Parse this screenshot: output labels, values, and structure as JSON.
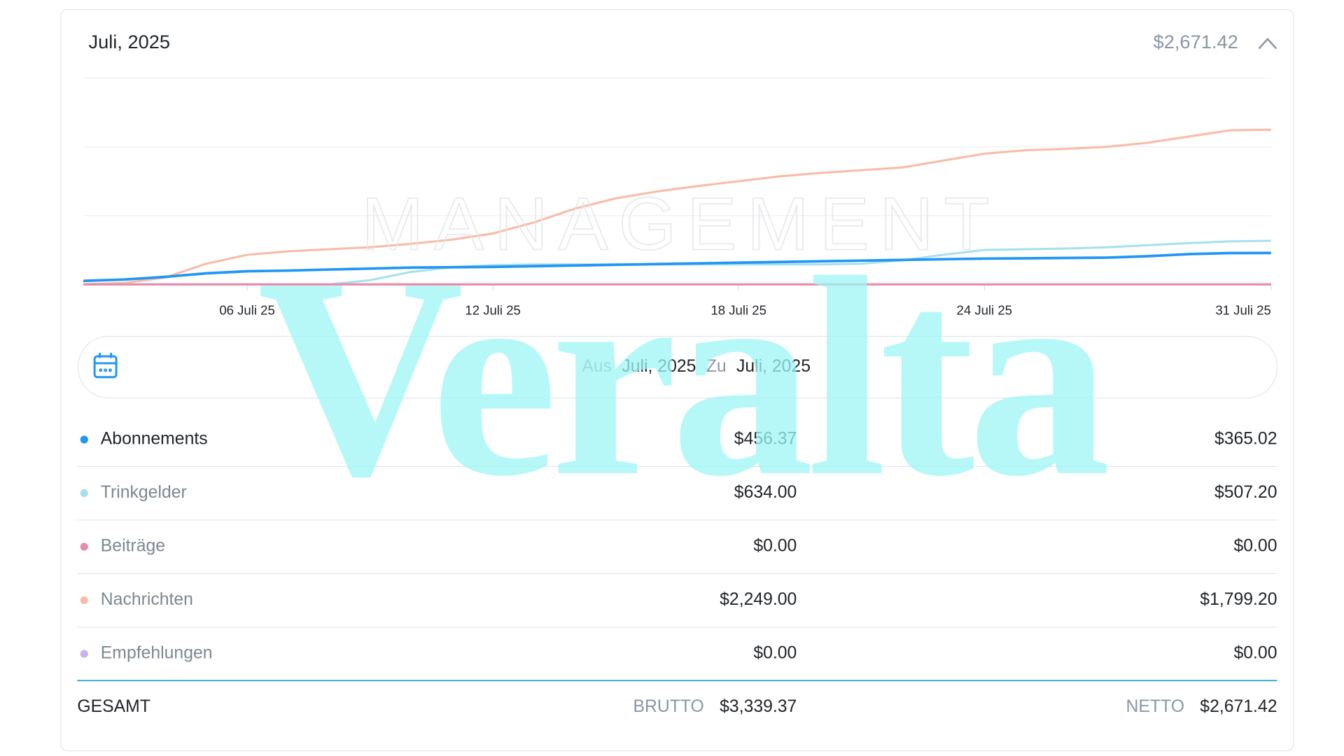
{
  "header": {
    "title": "Juli, 2025",
    "total": "$2,671.42"
  },
  "chart_data": {
    "type": "line",
    "x": [
      2,
      3,
      4,
      5,
      6,
      7,
      8,
      9,
      10,
      11,
      12,
      13,
      14,
      15,
      16,
      17,
      18,
      19,
      20,
      21,
      22,
      23,
      24,
      25,
      26,
      27,
      28,
      29,
      30,
      31
    ],
    "xlim": [
      2,
      31
    ],
    "xticks": [
      {
        "value": 6,
        "label": "06 Juli 25"
      },
      {
        "value": 12,
        "label": "12 Juli 25"
      },
      {
        "value": 18,
        "label": "18 Juli 25"
      },
      {
        "value": 24,
        "label": "24 Juli 25"
      },
      {
        "value": 31,
        "label": "31 Juli 25"
      }
    ],
    "ylim": [
      0,
      3000
    ],
    "yticks": [
      0,
      1000,
      2000,
      3000
    ],
    "grid": true,
    "series": [
      {
        "name": "Abonnements",
        "color": "#2196f3",
        "values": [
          50,
          70,
          110,
          160,
          190,
          200,
          215,
          230,
          245,
          250,
          255,
          265,
          275,
          285,
          295,
          305,
          315,
          325,
          335,
          345,
          355,
          365,
          375,
          380,
          385,
          390,
          410,
          440,
          455,
          456.37
        ]
      },
      {
        "name": "Trinkgelder",
        "color": "#a8e0ee",
        "values": [
          0,
          0,
          0,
          0,
          0,
          0,
          0,
          60,
          180,
          250,
          280,
          290,
          290,
          290,
          290,
          290,
          290,
          290,
          290,
          300,
          350,
          430,
          500,
          510,
          520,
          540,
          570,
          600,
          625,
          634
        ]
      },
      {
        "name": "Beiträge",
        "color": "#e98aa6",
        "values": [
          0,
          0,
          0,
          0,
          0,
          0,
          0,
          0,
          0,
          0,
          0,
          0,
          0,
          0,
          0,
          0,
          0,
          0,
          0,
          0,
          0,
          0,
          0,
          0,
          0,
          0,
          0,
          0,
          0,
          0
        ]
      },
      {
        "name": "Nachrichten",
        "color": "#f8bca8",
        "values": [
          0,
          20,
          100,
          300,
          430,
          480,
          510,
          540,
          590,
          650,
          740,
          900,
          1100,
          1250,
          1350,
          1430,
          1500,
          1570,
          1620,
          1660,
          1700,
          1800,
          1900,
          1950,
          1970,
          2000,
          2060,
          2150,
          2240,
          2249
        ]
      },
      {
        "name": "Empfehlungen",
        "color": "#c9b0ea",
        "values": [
          0,
          0,
          0,
          0,
          0,
          0,
          0,
          0,
          0,
          0,
          0,
          0,
          0,
          0,
          0,
          0,
          0,
          0,
          0,
          0,
          0,
          0,
          0,
          0,
          0,
          0,
          0,
          0,
          0,
          0
        ]
      }
    ]
  },
  "date_range": {
    "from_label": "Aus",
    "from": "Juli, 2025",
    "to_label": "Zu",
    "to": "Juli, 2025"
  },
  "table": {
    "rows": [
      {
        "gross": "$456.37",
        "net": "$365.02"
      },
      {
        "gross": "$634.00",
        "net": "$507.20"
      },
      {
        "gross": "$0.00",
        "net": "$0.00"
      },
      {
        "gross": "$2,249.00",
        "net": "$1,799.20"
      },
      {
        "gross": "$0.00",
        "net": "$0.00"
      }
    ],
    "total": {
      "label": "GESAMT",
      "gross_label": "BRUTTO",
      "gross": "$3,339.37",
      "net_label": "NETTO",
      "net": "$2,671.42"
    }
  },
  "watermarks": [
    "MANAGEMENT",
    "Veralta"
  ]
}
